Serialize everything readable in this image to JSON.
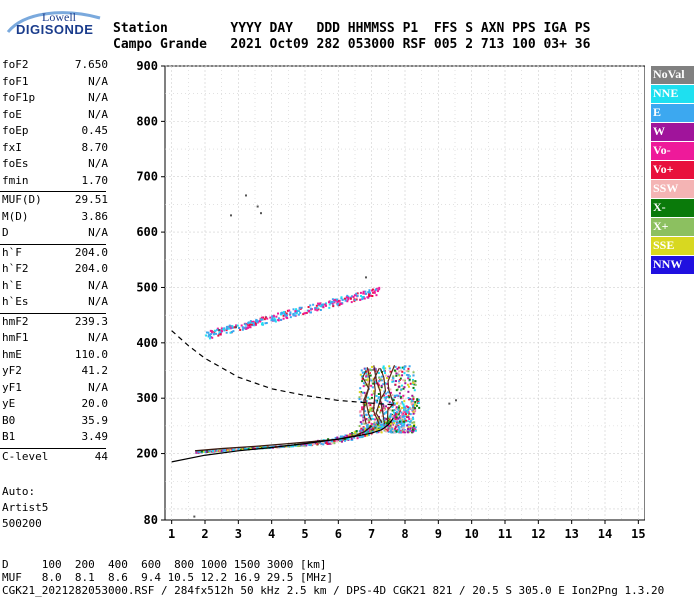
{
  "logo": {
    "brand": "Lowell",
    "name": "DIGISONDE"
  },
  "header": {
    "line1": "Station        YYYY DAY   DDD HHMMSS P1  FFS S AXN PPS IGA PS",
    "line2": "Campo Grande   2021 Oct09 282 053000 RSF 005 2 713 100 03+ 36"
  },
  "params": [
    [
      {
        "k": "foF2",
        "v": "7.650"
      },
      {
        "k": "foF1",
        "v": "N/A"
      },
      {
        "k": "foF1p",
        "v": "N/A"
      },
      {
        "k": "foE",
        "v": "N/A"
      },
      {
        "k": "foEp",
        "v": "0.45"
      },
      {
        "k": "fxI",
        "v": "8.70"
      },
      {
        "k": "foEs",
        "v": "N/A"
      },
      {
        "k": "fmin",
        "v": "1.70"
      }
    ],
    [
      {
        "k": "MUF(D)",
        "v": "29.51"
      },
      {
        "k": "M(D)",
        "v": "3.86"
      },
      {
        "k": "D",
        "v": "N/A"
      }
    ],
    [
      {
        "k": "h`F",
        "v": "204.0"
      },
      {
        "k": "h`F2",
        "v": "204.0"
      },
      {
        "k": "h`E",
        "v": "N/A"
      },
      {
        "k": "h`Es",
        "v": "N/A"
      }
    ],
    [
      {
        "k": "hmF2",
        "v": "239.3"
      },
      {
        "k": "hmF1",
        "v": "N/A"
      },
      {
        "k": "hmE",
        "v": "110.0"
      },
      {
        "k": "yF2",
        "v": "41.2"
      },
      {
        "k": "yF1",
        "v": "N/A"
      },
      {
        "k": "yE",
        "v": "20.0"
      },
      {
        "k": "B0",
        "v": "35.9"
      },
      {
        "k": "B1",
        "v": "3.49"
      }
    ],
    [
      {
        "k": "C-level",
        "v": "44"
      }
    ]
  ],
  "auto": {
    "line1": "Auto:",
    "line2": "Artist5",
    "line3": "500200"
  },
  "legend": [
    {
      "label": "NoVal",
      "color": "#808080"
    },
    {
      "label": "NNE",
      "color": "#1ee0f0"
    },
    {
      "label": "E",
      "color": "#3ca8f0"
    },
    {
      "label": "W",
      "color": "#a0149b"
    },
    {
      "label": "Vo-",
      "color": "#ee1a9a"
    },
    {
      "label": "Vo+",
      "color": "#e8103c"
    },
    {
      "label": "SSW",
      "color": "#f4b4b4"
    },
    {
      "label": "X-",
      "color": "#0a7a0a"
    },
    {
      "label": "X+",
      "color": "#8cc060"
    },
    {
      "label": "SSE",
      "color": "#d8d820"
    },
    {
      "label": "NNW",
      "color": "#2010e0"
    }
  ],
  "bottom": {
    "line1": "D     100  200  400  600  800 1000 1500 3000 [km]",
    "line2": "MUF   8.0  8.1  8.6  9.4 10.5 12.2 16.9 29.5 [MHz]",
    "line3": "CGK21_2021282053000.RSF / 284fx512h 50 kHz 2.5 km / DPS-4D CGK21 821 / 20.5 S 305.0 E Ion2Png 1.3.20"
  },
  "chart_data": {
    "type": "scatter",
    "title": "",
    "xlabel": "",
    "ylabel": "",
    "xlim": [
      0.8,
      15.2
    ],
    "ylim": [
      80,
      900
    ],
    "x_ticks": [
      1,
      2,
      3,
      4,
      5,
      6,
      7,
      8,
      9,
      10,
      11,
      12,
      13,
      14,
      15
    ],
    "y_ticks": [
      80,
      200,
      300,
      400,
      500,
      600,
      700,
      800,
      900
    ],
    "grid": true,
    "traces": {
      "f_layer_lower": {
        "fmin": 1.7,
        "fmax": 8.4,
        "hmin": 200,
        "hmax": 300
      },
      "f_layer_upper": {
        "fmin": 2.0,
        "fmax": 7.2,
        "hmin": 415,
        "hmax": 505
      },
      "cusp": {
        "fmin": 6.6,
        "fmax": 8.3,
        "hmin": 240,
        "hmax": 360
      }
    },
    "profile_curve": [
      [
        1,
        185
      ],
      [
        2,
        197
      ],
      [
        3,
        205
      ],
      [
        4,
        211
      ],
      [
        5,
        218
      ],
      [
        6,
        226
      ],
      [
        6.5,
        231
      ],
      [
        7,
        237
      ],
      [
        7.3,
        243
      ],
      [
        7.5,
        252
      ],
      [
        7.65,
        264
      ]
    ],
    "dashed_curve": [
      [
        1,
        422
      ],
      [
        1.5,
        395
      ],
      [
        2,
        372
      ],
      [
        3,
        338
      ],
      [
        4,
        317
      ],
      [
        5,
        305
      ],
      [
        6,
        296
      ],
      [
        7,
        291
      ],
      [
        7.65,
        288
      ]
    ],
    "trace_line": [
      [
        1.7,
        205
      ],
      [
        2.5,
        209
      ],
      [
        3.5,
        213
      ],
      [
        4.5,
        218
      ],
      [
        5.5,
        223
      ],
      [
        6,
        226
      ],
      [
        6.5,
        232
      ],
      [
        6.8,
        240
      ],
      [
        7,
        250
      ]
    ],
    "isolated_points": [
      [
        1.65,
        88
      ],
      [
        3.55,
        648
      ],
      [
        3.65,
        636
      ],
      [
        2.75,
        632
      ],
      [
        3.2,
        668
      ],
      [
        6.8,
        520
      ],
      [
        9.3,
        292
      ],
      [
        9.5,
        298
      ],
      [
        2.4,
        425
      ],
      [
        2.9,
        430
      ]
    ]
  }
}
